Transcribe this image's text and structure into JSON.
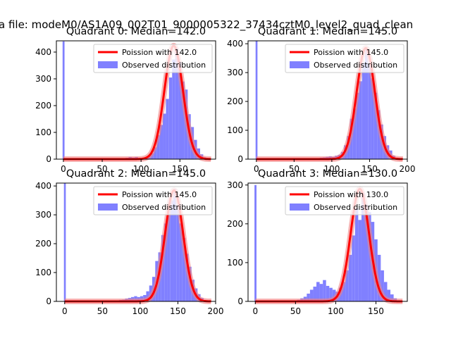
{
  "figure": {
    "suptitle": "a file: modeM0/AS1A09_002T01_9000005322_37434cztM0_level2_quad_clean"
  },
  "colors": {
    "poisson_line": "#ff0000",
    "observed_bars": "#8080ff",
    "fit_highlight": "#f08080"
  },
  "chart_data": [
    {
      "type": "bar",
      "title": "Quadrant 0: Median=142.0",
      "xlabel": "",
      "ylabel": "",
      "xlim": [
        -9,
        196
      ],
      "ylim": [
        0,
        442
      ],
      "xticks": [
        0,
        50,
        100,
        150
      ],
      "yticks": [
        0,
        100,
        200,
        300,
        400
      ],
      "grid": false,
      "legend_position": "upper right",
      "legend": [
        "Poission with 142.0",
        "Observed distribution"
      ],
      "median": 142.0,
      "series": [
        {
          "name": "Poission with 142.0",
          "kind": "line",
          "lambda": 142.0,
          "peak": 424
        },
        {
          "name": "Observed distribution",
          "kind": "histogram",
          "bin_width": 4,
          "spike_at_zero": 440,
          "bins": [
            [
              80,
              5
            ],
            [
              84,
              8
            ],
            [
              88,
              6
            ],
            [
              92,
              8
            ],
            [
              96,
              4
            ],
            [
              100,
              3
            ],
            [
              104,
              4
            ],
            [
              108,
              12
            ],
            [
              112,
              22
            ],
            [
              116,
              44
            ],
            [
              120,
              90
            ],
            [
              124,
              128
            ],
            [
              128,
              170
            ],
            [
              132,
              225
            ],
            [
              136,
              305
            ],
            [
              140,
              372
            ],
            [
              144,
              415
            ],
            [
              148,
              363
            ],
            [
              152,
              290
            ],
            [
              156,
              260
            ],
            [
              160,
              168
            ],
            [
              164,
              120
            ],
            [
              168,
              72
            ],
            [
              172,
              40
            ],
            [
              176,
              18
            ],
            [
              180,
              7
            ],
            [
              184,
              3
            ]
          ]
        }
      ]
    },
    {
      "type": "bar",
      "title": "Quadrant 1: Median=145.0",
      "xlabel": "",
      "ylabel": "",
      "xlim": [
        -11,
        200
      ],
      "ylim": [
        0,
        410
      ],
      "xticks": [
        0,
        50,
        100,
        150,
        200
      ],
      "yticks": [
        0,
        100,
        200,
        300,
        400
      ],
      "grid": false,
      "legend_position": "upper right",
      "legend": [
        "Poission with 145.0",
        "Observed distribution"
      ],
      "median": 145.0,
      "series": [
        {
          "name": "Poission with 145.0",
          "kind": "line",
          "lambda": 145.0,
          "peak": 385
        },
        {
          "name": "Observed distribution",
          "kind": "histogram",
          "bin_width": 4,
          "spike_at_zero": 410,
          "bins": [
            [
              80,
              3
            ],
            [
              84,
              5
            ],
            [
              88,
              6
            ],
            [
              92,
              8
            ],
            [
              96,
              10
            ],
            [
              100,
              8
            ],
            [
              104,
              12
            ],
            [
              108,
              15
            ],
            [
              112,
              25
            ],
            [
              116,
              48
            ],
            [
              120,
              80
            ],
            [
              124,
              140
            ],
            [
              128,
              175
            ],
            [
              132,
              230
            ],
            [
              136,
              270
            ],
            [
              140,
              335
            ],
            [
              144,
              380
            ],
            [
              148,
              330
            ],
            [
              152,
              280
            ],
            [
              156,
              230
            ],
            [
              160,
              170
            ],
            [
              164,
              120
            ],
            [
              168,
              80
            ],
            [
              172,
              48
            ],
            [
              176,
              30
            ],
            [
              180,
              12
            ],
            [
              184,
              5
            ],
            [
              188,
              2
            ]
          ]
        }
      ]
    },
    {
      "type": "bar",
      "title": "Quadrant 2: Median=145.0",
      "xlabel": "",
      "ylabel": "",
      "xlim": [
        -11,
        200
      ],
      "ylim": [
        0,
        410
      ],
      "xticks": [
        0,
        50,
        100,
        150,
        200
      ],
      "yticks": [
        0,
        100,
        200,
        300,
        400
      ],
      "grid": false,
      "legend_position": "upper right",
      "legend": [
        "Poission with 145.0",
        "Observed distribution"
      ],
      "median": 145.0,
      "series": [
        {
          "name": "Poission with 145.0",
          "kind": "line",
          "lambda": 145.0,
          "peak": 385
        },
        {
          "name": "Observed distribution",
          "kind": "histogram",
          "bin_width": 4,
          "spike_at_zero": 410,
          "bins": [
            [
              60,
              2
            ],
            [
              64,
              3
            ],
            [
              68,
              3
            ],
            [
              72,
              5
            ],
            [
              76,
              6
            ],
            [
              80,
              10
            ],
            [
              84,
              12
            ],
            [
              88,
              15
            ],
            [
              92,
              18
            ],
            [
              96,
              15
            ],
            [
              100,
              18
            ],
            [
              104,
              22
            ],
            [
              108,
              35
            ],
            [
              112,
              55
            ],
            [
              116,
              85
            ],
            [
              120,
              140
            ],
            [
              124,
              170
            ],
            [
              128,
              230
            ],
            [
              132,
              270
            ],
            [
              136,
              320
            ],
            [
              140,
              350
            ],
            [
              144,
              390
            ],
            [
              148,
              335
            ],
            [
              152,
              270
            ],
            [
              156,
              220
            ],
            [
              160,
              165
            ],
            [
              164,
              120
            ],
            [
              168,
              75
            ],
            [
              172,
              45
            ],
            [
              176,
              25
            ],
            [
              180,
              12
            ],
            [
              184,
              5
            ],
            [
              188,
              3
            ]
          ]
        }
      ]
    },
    {
      "type": "bar",
      "title": "Quadrant 3: Median=130.0",
      "xlabel": "",
      "ylabel": "",
      "xlim": [
        -9,
        189
      ],
      "ylim": [
        0,
        305
      ],
      "xticks": [
        0,
        50,
        100,
        150
      ],
      "yticks": [
        0,
        100,
        200,
        300
      ],
      "grid": false,
      "legend_position": "upper right",
      "legend": [
        "Poission with 130.0",
        "Observed distribution"
      ],
      "median": 130.0,
      "series": [
        {
          "name": "Poission with 130.0",
          "kind": "line",
          "lambda": 130.0,
          "peak": 290
        },
        {
          "name": "Observed distribution",
          "kind": "histogram",
          "bin_width": 4,
          "spike_at_zero": 300,
          "bins": [
            [
              48,
              2
            ],
            [
              52,
              4
            ],
            [
              56,
              8
            ],
            [
              60,
              12
            ],
            [
              64,
              20
            ],
            [
              68,
              30
            ],
            [
              72,
              38
            ],
            [
              76,
              50
            ],
            [
              80,
              45
            ],
            [
              84,
              55
            ],
            [
              88,
              40
            ],
            [
              92,
              35
            ],
            [
              96,
              30
            ],
            [
              100,
              25
            ],
            [
              104,
              35
            ],
            [
              108,
              50
            ],
            [
              112,
              80
            ],
            [
              116,
              120
            ],
            [
              120,
              170
            ],
            [
              124,
              240
            ],
            [
              128,
              210
            ],
            [
              132,
              280
            ],
            [
              136,
              250
            ],
            [
              140,
              230
            ],
            [
              144,
              205
            ],
            [
              148,
              160
            ],
            [
              152,
              120
            ],
            [
              156,
              80
            ],
            [
              160,
              50
            ],
            [
              164,
              30
            ],
            [
              168,
              18
            ],
            [
              172,
              8
            ],
            [
              176,
              3
            ]
          ]
        }
      ]
    }
  ]
}
